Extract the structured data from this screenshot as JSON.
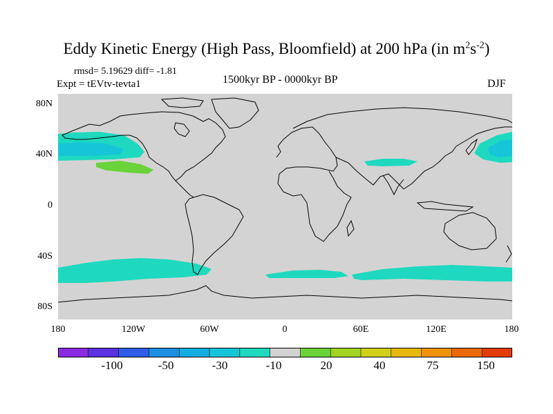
{
  "title": {
    "main": "Eddy Kinetic Energy (High Pass, Bloomfield) at 200 hPa (in m",
    "sup1": "2",
    "mid": "s",
    "sup2": "-2",
    "end": ")"
  },
  "stats": "rmsd= 5.19629 diff= -1.81",
  "experiment": "Expt = tEVtv-tevta1",
  "period": "1500kyr BP - 0000kyr BP",
  "season": "DJF",
  "axes": {
    "y_ticks": [
      "80N",
      "40N",
      "0",
      "40S",
      "80S"
    ],
    "x_ticks": [
      "180",
      "120W",
      "60W",
      "0",
      "60E",
      "120E",
      "180"
    ]
  },
  "colors": {
    "land_ocean_neutral": "#d3d3d3",
    "coast": "#000000"
  },
  "colorbar": {
    "colors": [
      "#8a2be2",
      "#5a32e0",
      "#2f5de8",
      "#1d8fe3",
      "#14aee0",
      "#16c6d8",
      "#1ed9bf",
      "#d3d3d3",
      "#6ad33a",
      "#a2d422",
      "#d0d018",
      "#e8b80e",
      "#f0920c",
      "#ec6a0a",
      "#e43c08"
    ],
    "labels": [
      "-100",
      "-50",
      "-30",
      "-10",
      "20",
      "40",
      "75",
      "150"
    ]
  }
}
